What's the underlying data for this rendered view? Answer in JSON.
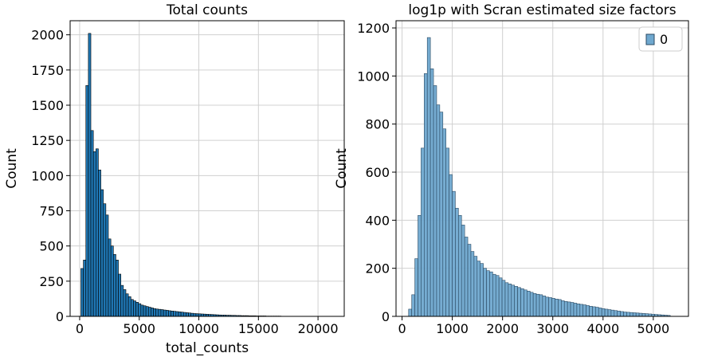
{
  "chart_data": [
    {
      "type": "bar",
      "title": "Total counts",
      "xlabel": "total_counts",
      "ylabel": "Count",
      "xlim": [
        -800,
        22200
      ],
      "ylim": [
        0,
        2100
      ],
      "grid": true,
      "xticks": [
        0,
        5000,
        10000,
        15000,
        20000
      ],
      "yticks": [
        0,
        250,
        500,
        750,
        1000,
        1250,
        1500,
        1750,
        2000
      ],
      "bin_start": 100,
      "bin_width": 210,
      "values": [
        340,
        400,
        1640,
        2010,
        1320,
        1170,
        1190,
        1040,
        900,
        800,
        720,
        550,
        500,
        440,
        400,
        300,
        220,
        190,
        160,
        140,
        120,
        110,
        100,
        90,
        80,
        75,
        70,
        65,
        60,
        55,
        52,
        50,
        48,
        45,
        43,
        40,
        38,
        36,
        34,
        32,
        30,
        28,
        26,
        24,
        22,
        20,
        19,
        18,
        17,
        16,
        15,
        14,
        13,
        12,
        11,
        10,
        9,
        9,
        8,
        8,
        7,
        7,
        6,
        6,
        5,
        5,
        5,
        4,
        4,
        4,
        3,
        3,
        3,
        3,
        2,
        2,
        2,
        2,
        2,
        2,
        1,
        1,
        1,
        1,
        1,
        1,
        1,
        1,
        1,
        1,
        1,
        1,
        1,
        1,
        1,
        1,
        1,
        1,
        1,
        1
      ],
      "colors": {
        "bar": "#1f77b4",
        "edge": "#000000"
      }
    },
    {
      "type": "bar",
      "title": "log1p with Scran estimated size factors",
      "xlabel": "",
      "ylabel": "Count",
      "xlim": [
        -120,
        5700
      ],
      "ylim": [
        0,
        1230
      ],
      "grid": true,
      "xticks": [
        0,
        1000,
        2000,
        3000,
        4000,
        5000
      ],
      "yticks": [
        0,
        200,
        400,
        600,
        800,
        1000,
        1200
      ],
      "legend": {
        "label": "0",
        "placement": "top-right"
      },
      "bin_start": 130,
      "bin_width": 62,
      "values": [
        30,
        90,
        240,
        420,
        700,
        1010,
        1160,
        1030,
        960,
        880,
        850,
        780,
        700,
        590,
        520,
        450,
        420,
        380,
        330,
        300,
        270,
        250,
        230,
        220,
        200,
        190,
        185,
        175,
        170,
        160,
        150,
        140,
        135,
        130,
        125,
        120,
        115,
        110,
        105,
        100,
        95,
        92,
        90,
        85,
        80,
        78,
        75,
        72,
        70,
        65,
        62,
        60,
        58,
        55,
        52,
        50,
        48,
        45,
        42,
        40,
        38,
        35,
        32,
        30,
        28,
        26,
        24,
        22,
        20,
        18,
        17,
        16,
        15,
        14,
        13,
        12,
        11,
        10,
        9,
        8,
        7,
        6,
        5,
        4
      ],
      "colors": {
        "bar": "#6fa8cf",
        "edge": "#2b4a63"
      }
    }
  ]
}
